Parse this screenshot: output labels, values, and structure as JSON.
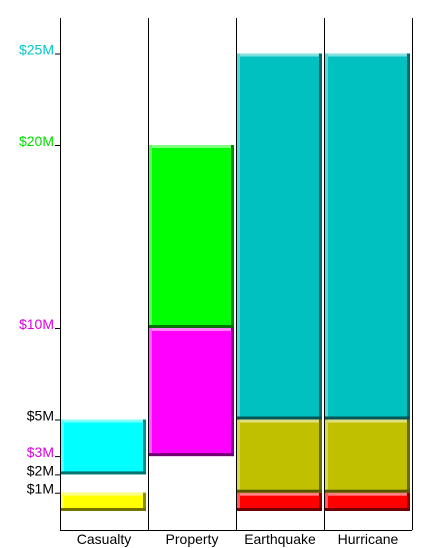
{
  "chart_data": {
    "type": "bar",
    "categories": [
      "Casualty",
      "Property",
      "Earthquake",
      "Hurricane"
    ],
    "y_ticks": [
      {
        "label": "$25M",
        "value": 25,
        "color": "#00c8c8"
      },
      {
        "label": "$20M",
        "value": 20,
        "color": "#00e000"
      },
      {
        "label": "$10M",
        "value": 10,
        "color": "#e000e0"
      },
      {
        "label": "$5M",
        "value": 5,
        "color": "#000000"
      },
      {
        "label": "$3M",
        "value": 3,
        "color": "#e000e0"
      },
      {
        "label": "$2M",
        "value": 2,
        "color": "#000000"
      },
      {
        "label": "$1M",
        "value": 1,
        "color": "#000000"
      }
    ],
    "ylim": [
      0,
      27
    ],
    "bars": [
      {
        "category": "Casualty",
        "start": 0,
        "end": 1,
        "color": "#ffff00"
      },
      {
        "category": "Casualty",
        "start": 2,
        "end": 5,
        "color": "#00ffff"
      },
      {
        "category": "Property",
        "start": 3,
        "end": 10,
        "color": "#ff00ff"
      },
      {
        "category": "Property",
        "start": 10,
        "end": 20,
        "color": "#00ff00"
      },
      {
        "category": "Earthquake",
        "start": 0,
        "end": 1,
        "color": "#ff0000"
      },
      {
        "category": "Earthquake",
        "start": 1,
        "end": 5,
        "color": "#c0c000"
      },
      {
        "category": "Earthquake",
        "start": 5,
        "end": 25,
        "color": "#00c0c0"
      },
      {
        "category": "Hurricane",
        "start": 0,
        "end": 1,
        "color": "#ff0000"
      },
      {
        "category": "Hurricane",
        "start": 1,
        "end": 5,
        "color": "#c0c000"
      },
      {
        "category": "Hurricane",
        "start": 5,
        "end": 25,
        "color": "#00c0c0"
      }
    ],
    "grid": false
  }
}
